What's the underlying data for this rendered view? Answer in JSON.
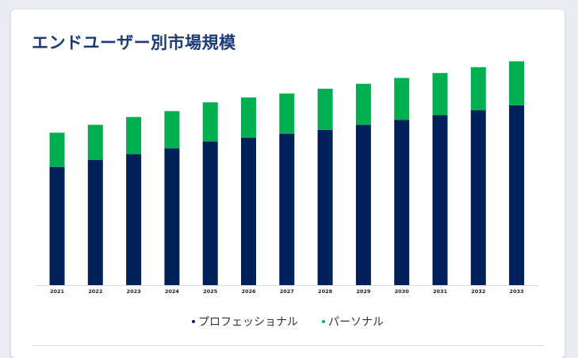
{
  "header": {
    "title": "エンドユーザー別市場規模"
  },
  "chart_data": {
    "type": "bar",
    "stacked": true,
    "title": "エンドユーザー別市場規模",
    "categories": [
      "2021",
      "2022",
      "2023",
      "2024",
      "2025",
      "2026",
      "2027",
      "2028",
      "2029",
      "2030",
      "2031",
      "2032",
      "2033"
    ],
    "series": [
      {
        "name": "プロフェッショナル",
        "color": "#00205b",
        "values": [
          121,
          128,
          134,
          140,
          147,
          151,
          155,
          159,
          164,
          169,
          174,
          179,
          184
        ]
      },
      {
        "name": "パーソナル",
        "color": "#00b050",
        "values": [
          35,
          36,
          38,
          38,
          40,
          41,
          41,
          42,
          42,
          43,
          43,
          44,
          45
        ]
      }
    ],
    "ylim": [
      0,
      235
    ],
    "grid": false,
    "legend": "bottom",
    "colors": {
      "title": "#1a3a7a",
      "baseline": "#dddddd"
    }
  }
}
